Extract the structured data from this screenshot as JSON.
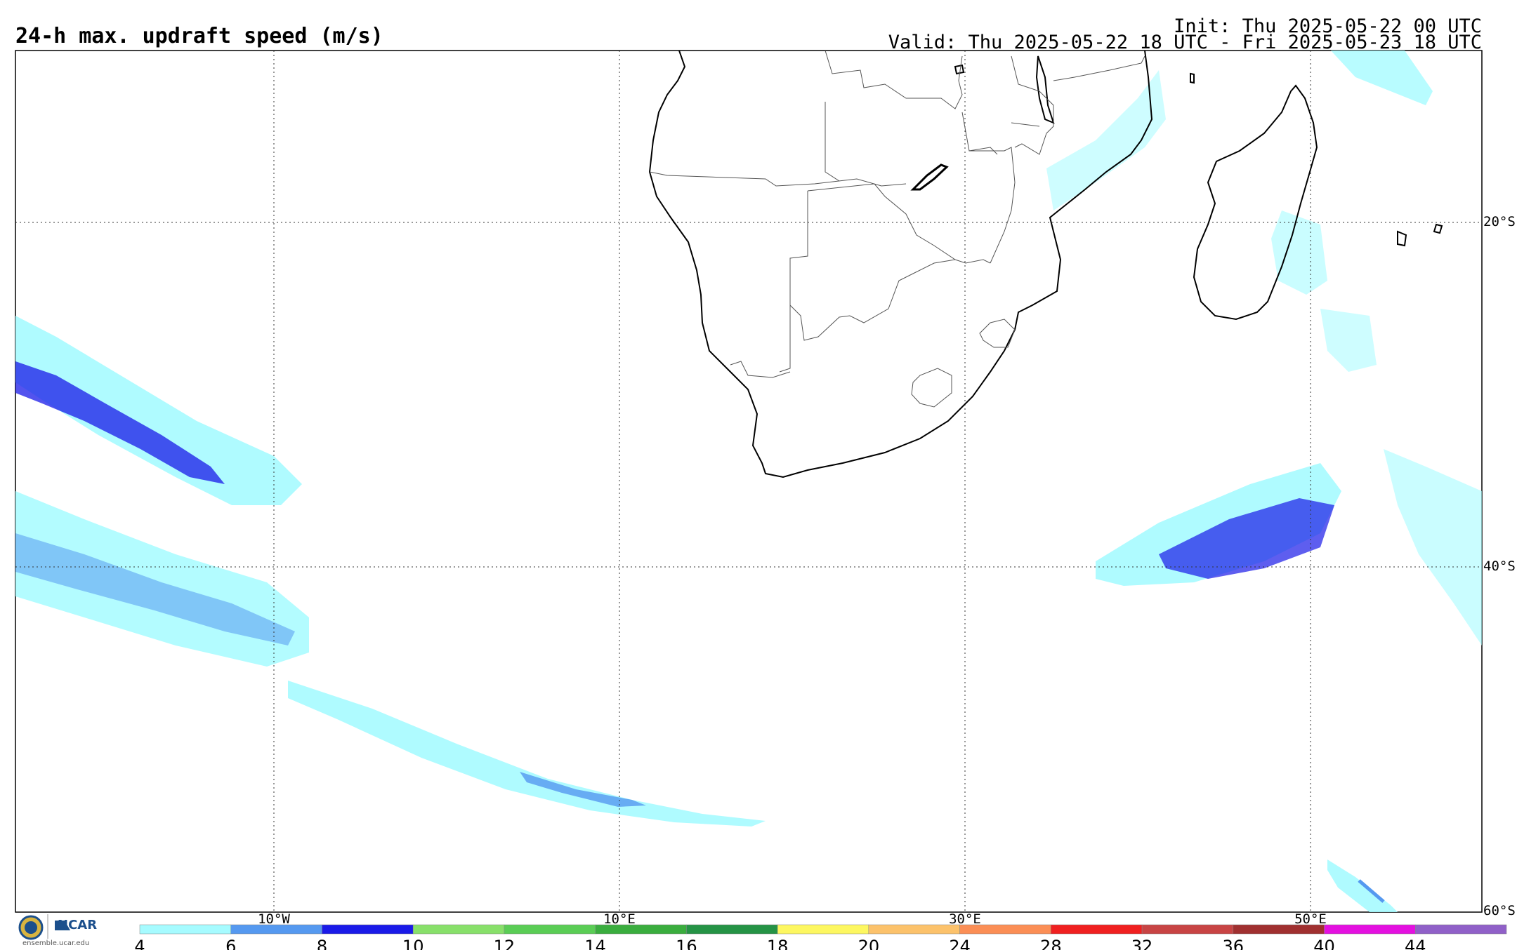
{
  "header": {
    "title": "24-h max. updraft speed (m/s)",
    "init": "Init: Thu 2025-05-22 00 UTC",
    "valid": "Valid: Thu 2025-05-22 18 UTC - Fri 2025-05-23 18 UTC"
  },
  "map": {
    "lat_labels": [
      "20°S",
      "40°S",
      "60°S"
    ],
    "lon_labels": [
      "10°W",
      "10°E",
      "30°E",
      "50°E"
    ]
  },
  "colorbar": {
    "ticks": [
      "4",
      "6",
      "8",
      "10",
      "12",
      "14",
      "16",
      "18",
      "20",
      "24",
      "28",
      "32",
      "36",
      "40",
      "44"
    ],
    "colors": [
      "#a6fbff",
      "#5599f0",
      "#1a1ae8",
      "#88e06a",
      "#5acd55",
      "#3aad3e",
      "#259345",
      "#fdf760",
      "#fcc26b",
      "#fb8e55",
      "#f02020",
      "#c84444",
      "#a03030",
      "#e410e0",
      "#9060c8"
    ]
  },
  "footer": {
    "org": "NCAR",
    "site": "ensemble.ucar.edu"
  }
}
